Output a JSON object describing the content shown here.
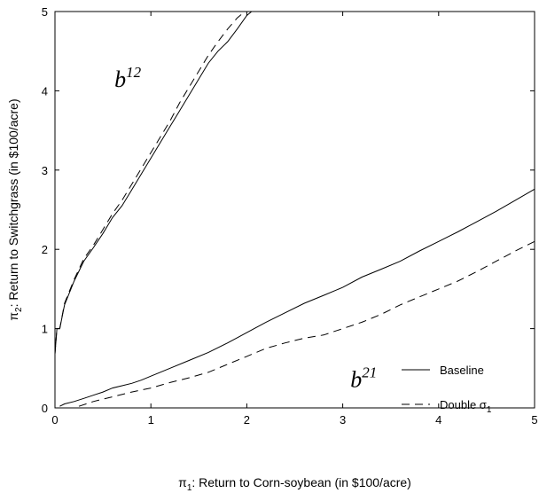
{
  "chart_data": {
    "type": "line",
    "title": "",
    "xlabel_prefix": "π",
    "xlabel_sub": "1",
    "xlabel_rest": ": Return to Corn-soybean (in $100/acre)",
    "ylabel_prefix": "π",
    "ylabel_sub": "2",
    "ylabel_rest": ": Return to Switchgrass (in $100/acre)",
    "xlim": [
      0,
      5
    ],
    "ylim": [
      0,
      5
    ],
    "xticks": [
      0,
      1,
      2,
      3,
      4,
      5
    ],
    "yticks": [
      0,
      1,
      2,
      3,
      4,
      5
    ],
    "grid": false,
    "legend_placement": "bottom-right",
    "legend": [
      {
        "label": "Baseline",
        "style": "solid"
      },
      {
        "label_main": "Double σ",
        "label_sub": "1",
        "style": "dashed"
      }
    ],
    "annotations": [
      {
        "base": "b",
        "sup": "12",
        "x": 0.62,
        "y": 4.15
      },
      {
        "base": "b",
        "sup": "21",
        "x": 3.08,
        "y": 0.15
      }
    ],
    "series": [
      {
        "curve": "b12",
        "style": "solid",
        "x": [
          0,
          0.02,
          0.05,
          0.1,
          0.15,
          0.2,
          0.3,
          0.4,
          0.5,
          0.6,
          0.7,
          0.8,
          0.9,
          1.0,
          1.1,
          1.2,
          1.3,
          1.4,
          1.5,
          1.6,
          1.7,
          1.8,
          1.9,
          2.0,
          2.05
        ],
        "y": [
          0.68,
          1.0,
          1.0,
          1.3,
          1.45,
          1.6,
          1.85,
          2.02,
          2.2,
          2.4,
          2.55,
          2.75,
          2.95,
          3.15,
          3.35,
          3.55,
          3.75,
          3.95,
          4.15,
          4.35,
          4.5,
          4.62,
          4.78,
          4.95,
          5.0
        ]
      },
      {
        "curve": "b12",
        "style": "dashed",
        "x": [
          0,
          0.02,
          0.05,
          0.1,
          0.15,
          0.2,
          0.3,
          0.4,
          0.5,
          0.6,
          0.7,
          0.8,
          0.9,
          1.0,
          1.1,
          1.2,
          1.3,
          1.4,
          1.5,
          1.6,
          1.7,
          1.8,
          1.9,
          1.98
        ],
        "y": [
          0.68,
          1.0,
          1.0,
          1.32,
          1.47,
          1.62,
          1.88,
          2.05,
          2.25,
          2.45,
          2.62,
          2.82,
          3.02,
          3.22,
          3.42,
          3.62,
          3.85,
          4.05,
          4.25,
          4.45,
          4.62,
          4.78,
          4.92,
          5.0
        ]
      },
      {
        "curve": "b21",
        "style": "solid",
        "x": [
          0.05,
          0.1,
          0.2,
          0.3,
          0.4,
          0.5,
          0.6,
          0.7,
          0.8,
          0.9,
          1.0,
          1.2,
          1.4,
          1.6,
          1.8,
          2.0,
          2.2,
          2.4,
          2.6,
          2.8,
          3.0,
          3.2,
          3.4,
          3.6,
          3.8,
          4.0,
          4.2,
          4.4,
          4.6,
          4.8,
          5.0
        ],
        "y": [
          0.02,
          0.05,
          0.08,
          0.12,
          0.16,
          0.2,
          0.25,
          0.28,
          0.31,
          0.35,
          0.4,
          0.5,
          0.6,
          0.7,
          0.82,
          0.95,
          1.08,
          1.2,
          1.32,
          1.42,
          1.52,
          1.65,
          1.75,
          1.85,
          1.98,
          2.1,
          2.22,
          2.35,
          2.48,
          2.62,
          2.76
        ]
      },
      {
        "curve": "b21",
        "style": "dashed",
        "x": [
          0.25,
          0.4,
          0.6,
          0.8,
          1.0,
          1.2,
          1.4,
          1.6,
          1.8,
          2.0,
          2.2,
          2.4,
          2.6,
          2.8,
          3.0,
          3.2,
          3.4,
          3.6,
          3.8,
          4.0,
          4.2,
          4.4,
          4.6,
          4.8,
          5.0
        ],
        "y": [
          0.02,
          0.08,
          0.14,
          0.2,
          0.25,
          0.32,
          0.38,
          0.45,
          0.55,
          0.65,
          0.75,
          0.82,
          0.88,
          0.92,
          1.0,
          1.08,
          1.18,
          1.3,
          1.4,
          1.5,
          1.6,
          1.72,
          1.85,
          1.98,
          2.1
        ]
      }
    ]
  }
}
